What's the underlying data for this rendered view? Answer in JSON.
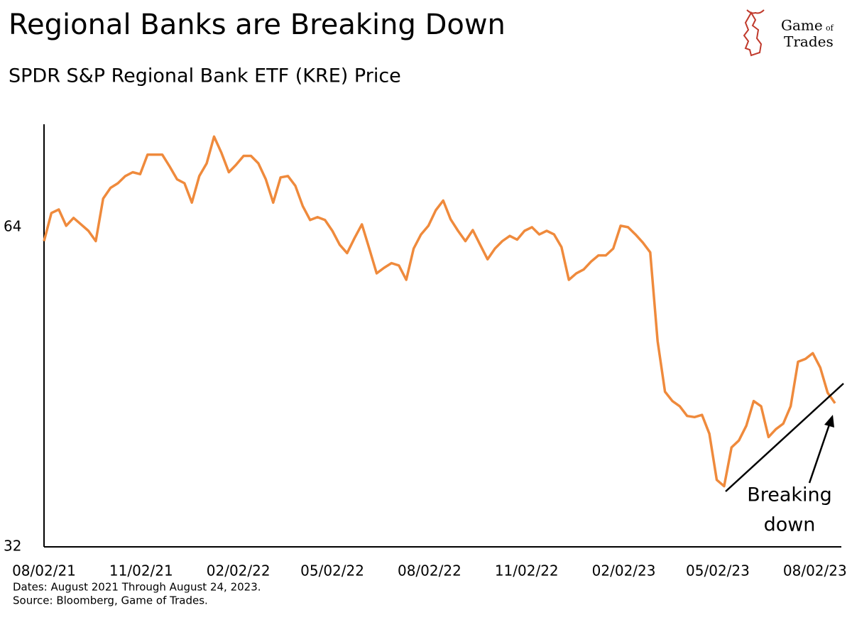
{
  "chart_data": {
    "type": "line",
    "title": "Regional Banks are Breaking Down",
    "subtitle": "SPDR S&P Regional Bank ETF (KRE) Price",
    "logo": [
      "Game",
      "of",
      "Trades"
    ],
    "notes": [
      "Dates: August 2021 Through August 24, 2023.",
      "Source: Bloomberg, Game of Trades."
    ],
    "annotation": [
      "Breaking",
      "down"
    ],
    "color": "#ef8a3c",
    "log": true,
    "ylim": [
      32,
      80
    ],
    "yticks": [
      32,
      64
    ],
    "xlim": [
      "2021-08-02",
      "2023-08-27"
    ],
    "xticks": [
      {
        "value": "2021-08-02",
        "label": "08/02/21"
      },
      {
        "value": "2021-11-02",
        "label": "11/02/21"
      },
      {
        "value": "2022-02-02",
        "label": "02/02/22"
      },
      {
        "value": "2022-05-02",
        "label": "05/02/22"
      },
      {
        "value": "2022-08-02",
        "label": "08/02/22"
      },
      {
        "value": "2022-11-02",
        "label": "11/02/22"
      },
      {
        "value": "2023-02-02",
        "label": "02/02/23"
      },
      {
        "value": "2023-05-02",
        "label": "05/02/23"
      },
      {
        "value": "2023-08-02",
        "label": "08/02/23"
      }
    ],
    "x": [
      "2021-08-02",
      "2021-08-09",
      "2021-08-16",
      "2021-08-23",
      "2021-08-30",
      "2021-09-06",
      "2021-09-13",
      "2021-09-20",
      "2021-09-27",
      "2021-10-04",
      "2021-10-11",
      "2021-10-18",
      "2021-10-25",
      "2021-11-01",
      "2021-11-08",
      "2021-11-15",
      "2021-11-22",
      "2021-11-29",
      "2021-12-06",
      "2021-12-13",
      "2021-12-20",
      "2021-12-27",
      "2022-01-03",
      "2022-01-10",
      "2022-01-17",
      "2022-01-24",
      "2022-01-31",
      "2022-02-07",
      "2022-02-14",
      "2022-02-21",
      "2022-02-28",
      "2022-03-07",
      "2022-03-14",
      "2022-03-21",
      "2022-03-28",
      "2022-04-04",
      "2022-04-11",
      "2022-04-18",
      "2022-04-25",
      "2022-05-02",
      "2022-05-09",
      "2022-05-16",
      "2022-05-23",
      "2022-05-30",
      "2022-06-06",
      "2022-06-13",
      "2022-06-20",
      "2022-06-27",
      "2022-07-04",
      "2022-07-11",
      "2022-07-18",
      "2022-07-25",
      "2022-08-01",
      "2022-08-08",
      "2022-08-15",
      "2022-08-22",
      "2022-08-29",
      "2022-09-05",
      "2022-09-12",
      "2022-09-19",
      "2022-09-26",
      "2022-10-03",
      "2022-10-10",
      "2022-10-17",
      "2022-10-24",
      "2022-10-31",
      "2022-11-07",
      "2022-11-14",
      "2022-11-21",
      "2022-11-28",
      "2022-12-05",
      "2022-12-12",
      "2022-12-19",
      "2022-12-26",
      "2023-01-02",
      "2023-01-09",
      "2023-01-16",
      "2023-01-23",
      "2023-01-30",
      "2023-02-06",
      "2023-02-13",
      "2023-02-20",
      "2023-02-27",
      "2023-03-06",
      "2023-03-13",
      "2023-03-20",
      "2023-03-27",
      "2023-04-03",
      "2023-04-10",
      "2023-04-17",
      "2023-04-24",
      "2023-05-01",
      "2023-05-08",
      "2023-05-15",
      "2023-05-22",
      "2023-05-29",
      "2023-06-05",
      "2023-06-12",
      "2023-06-19",
      "2023-06-26",
      "2023-07-03",
      "2023-07-10",
      "2023-07-17",
      "2023-07-24",
      "2023-07-31",
      "2023-08-07",
      "2023-08-14",
      "2023-08-21"
    ],
    "values": [
      62.1,
      66.0,
      66.5,
      64.2,
      65.3,
      64.4,
      63.5,
      62.1,
      68.1,
      69.7,
      70.4,
      71.5,
      72.1,
      71.8,
      74.9,
      74.9,
      74.9,
      73.0,
      71.0,
      70.4,
      67.5,
      71.5,
      73.5,
      77.9,
      75.2,
      72.1,
      73.3,
      74.7,
      74.7,
      73.5,
      71.0,
      67.5,
      71.3,
      71.5,
      70.0,
      67.0,
      65.0,
      65.4,
      65.0,
      63.5,
      61.6,
      60.5,
      62.5,
      64.4,
      61.1,
      57.9,
      58.6,
      59.2,
      58.9,
      57.1,
      61.1,
      63.0,
      64.2,
      66.4,
      67.8,
      65.1,
      63.5,
      62.1,
      63.6,
      61.6,
      59.7,
      61.1,
      62.1,
      62.8,
      62.3,
      63.5,
      64.0,
      63.0,
      63.5,
      63.0,
      61.3,
      57.1,
      57.9,
      58.4,
      59.4,
      60.2,
      60.2,
      61.1,
      64.2,
      64.0,
      63.0,
      61.9,
      60.6,
      50.0,
      44.8,
      43.9,
      43.4,
      42.5,
      42.4,
      42.6,
      40.9,
      37.0,
      36.5,
      39.7,
      40.3,
      41.6,
      43.9,
      43.4,
      40.6,
      41.3,
      41.8,
      43.4,
      47.8,
      48.1,
      48.7,
      47.2,
      44.7,
      43.7
    ]
  }
}
